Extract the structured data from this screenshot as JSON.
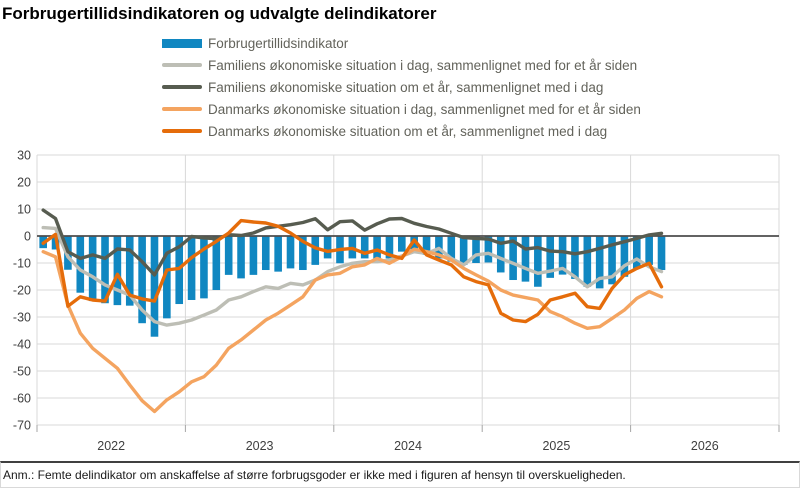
{
  "title": "Forbrugertillidsindikatoren og udvalgte delindikatorer",
  "footer": {
    "note": "Anm.: Femte delindikator om anskaffelse af større forbrugsgoder er ikke med i figuren af hensyn til overskueligheden."
  },
  "chart_data": {
    "type": "bar+line",
    "title": "Forbrugertillidsindikatoren og udvalgte delindikatorer",
    "x_unit": "month",
    "x_start": "2022-01",
    "x_end": "2026-03",
    "x_tick_labels": [
      "2022",
      "2023",
      "2024",
      "2025",
      "2026"
    ],
    "ylim": [
      -70,
      30
    ],
    "y_ticks": [
      30,
      20,
      10,
      0,
      -10,
      -20,
      -30,
      -40,
      -50,
      -60,
      -70
    ],
    "grid": "on",
    "legend_position": "top",
    "zero_line_color": "#4d4d4d",
    "gridline_color": "#d9d9d9",
    "axis_text_color": "#3f3f3f",
    "series": [
      {
        "name": "Forbrugertillidsindikator",
        "type": "bar",
        "color": "#1087c1",
        "values": [
          -4.5,
          -5.0,
          -12.5,
          -21.0,
          -24.1,
          -24.9,
          -25.6,
          -25.8,
          -32.3,
          -37.3,
          -30.5,
          -25.2,
          -23.7,
          -23.1,
          -20.0,
          -14.4,
          -15.7,
          -14.4,
          -12.6,
          -13.2,
          -12.0,
          -12.6,
          -10.7,
          -8.3,
          -10.1,
          -8.3,
          -8.3,
          -8.9,
          -8.3,
          -5.8,
          -6.4,
          -7.0,
          -8.3,
          -9.5,
          -10.7,
          -10.0,
          -9.8,
          -13.5,
          -16.3,
          -16.9,
          -18.8,
          -15.5,
          -14.3,
          -15.9,
          -18.8,
          -19.4,
          -17.9,
          -15.1,
          -12.0,
          -10.7,
          -12.6
        ]
      },
      {
        "name": "Familiens økonomiske situation i dag, sammenlignet med for et år siden",
        "type": "line",
        "color": "#bdbeb5",
        "values": [
          3.1,
          2.8,
          -7.7,
          -12.6,
          -15.1,
          -18.1,
          -20.0,
          -21.9,
          -27.4,
          -31.7,
          -33.0,
          -32.3,
          -31.1,
          -29.3,
          -27.4,
          -23.7,
          -22.5,
          -20.6,
          -18.8,
          -19.4,
          -17.5,
          -18.1,
          -16.3,
          -13.2,
          -11.4,
          -10.1,
          -9.5,
          -9.5,
          -8.9,
          -7.4,
          -5.8,
          -6.5,
          -4.6,
          -8.3,
          -10.7,
          -7.0,
          -6.4,
          -8.3,
          -10.1,
          -12.0,
          -13.8,
          -13.0,
          -12.0,
          -15.1,
          -18.8,
          -15.7,
          -15.1,
          -11.0,
          -8.5,
          -11.4,
          -13.2
        ]
      },
      {
        "name": "Familiens økonomiske situation om et år, sammenlignet med i dag",
        "type": "line",
        "color": "#575c50",
        "values": [
          9.6,
          6.5,
          -5.8,
          -8.3,
          -7.0,
          -8.3,
          -4.8,
          -5.2,
          -9.5,
          -14.4,
          -6.4,
          -4.0,
          -0.2,
          -0.7,
          -1.0,
          0.5,
          0.2,
          1.1,
          3.0,
          3.6,
          4.2,
          5.0,
          6.4,
          2.3,
          5.3,
          5.6,
          2.2,
          4.5,
          6.3,
          6.5,
          4.7,
          3.5,
          2.6,
          1.0,
          -0.6,
          -0.9,
          -1.1,
          -2.7,
          -1.9,
          -4.8,
          -4.3,
          -5.6,
          -5.8,
          -6.6,
          -5.8,
          -4.6,
          -3.3,
          -2.1,
          -0.9,
          0.4,
          1.0
        ]
      },
      {
        "name": "Danmarks økonomiske situation i dag, sammenlignet med for et år siden",
        "type": "line",
        "color": "#f4a460",
        "values": [
          -5.8,
          -7.7,
          -25.6,
          -36.0,
          -41.6,
          -45.3,
          -49.0,
          -55.2,
          -61.0,
          -65.0,
          -60.7,
          -57.7,
          -54.0,
          -52.1,
          -47.8,
          -41.6,
          -38.5,
          -34.8,
          -31.1,
          -28.6,
          -25.6,
          -22.5,
          -16.3,
          -14.4,
          -13.8,
          -11.4,
          -10.7,
          -8.3,
          -10.1,
          -7.7,
          -4.9,
          -5.8,
          -7.0,
          -8.9,
          -12.0,
          -14.4,
          -16.7,
          -20.0,
          -21.9,
          -22.8,
          -23.7,
          -28.0,
          -29.9,
          -32.3,
          -34.2,
          -33.6,
          -30.5,
          -27.4,
          -23.1,
          -20.6,
          -22.5
        ]
      },
      {
        "name": "Danmarks økonomiske situation om et år, sammenlignet med i dag",
        "type": "line",
        "color": "#e56c0a",
        "values": [
          -2.7,
          0.6,
          -26.0,
          -22.5,
          -23.7,
          -24.1,
          -14.2,
          -21.9,
          -23.3,
          -24.1,
          -12.6,
          -12.0,
          -8.0,
          -4.8,
          -2.0,
          1.1,
          5.7,
          5.2,
          4.8,
          3.6,
          1.1,
          -2.0,
          -4.4,
          -5.7,
          -5.0,
          -4.6,
          -6.4,
          -5.2,
          -7.0,
          -8.3,
          -1.5,
          -7.0,
          -8.9,
          -10.7,
          -15.1,
          -16.9,
          -18.1,
          -28.6,
          -31.1,
          -31.7,
          -29.0,
          -23.7,
          -22.5,
          -21.2,
          -26.2,
          -26.8,
          -19.4,
          -14.4,
          -12.0,
          -10.1,
          -18.8
        ]
      }
    ]
  }
}
